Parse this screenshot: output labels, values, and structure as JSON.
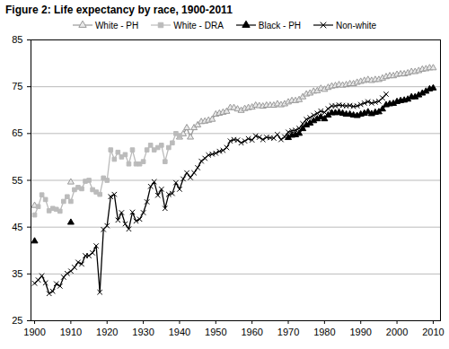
{
  "chart_data": {
    "type": "line",
    "title": "Figure 2: Life expectancy by race, 1900-2011",
    "x": [
      1900,
      1901,
      1902,
      1903,
      1904,
      1905,
      1906,
      1907,
      1908,
      1909,
      1910,
      1911,
      1912,
      1913,
      1914,
      1915,
      1916,
      1917,
      1918,
      1919,
      1920,
      1921,
      1922,
      1923,
      1924,
      1925,
      1926,
      1927,
      1928,
      1929,
      1930,
      1931,
      1932,
      1933,
      1934,
      1935,
      1936,
      1937,
      1938,
      1939,
      1940,
      1941,
      1942,
      1943,
      1944,
      1945,
      1946,
      1947,
      1948,
      1949,
      1950,
      1951,
      1952,
      1953,
      1954,
      1955,
      1956,
      1957,
      1958,
      1959,
      1960,
      1961,
      1962,
      1963,
      1964,
      1965,
      1966,
      1967,
      1968,
      1969,
      1970,
      1971,
      1972,
      1973,
      1974,
      1975,
      1976,
      1977,
      1978,
      1979,
      1980,
      1981,
      1982,
      1983,
      1984,
      1985,
      1986,
      1987,
      1988,
      1989,
      1990,
      1991,
      1992,
      1993,
      1994,
      1995,
      1996,
      1997,
      1998,
      1999,
      2000,
      2001,
      2002,
      2003,
      2004,
      2005,
      2006,
      2007,
      2008,
      2009,
      2010,
      2011
    ],
    "series": [
      {
        "name": "White - PH",
        "color": "#999999",
        "marker": "triangle-open",
        "line_style": "solid",
        "values": [
          49.6,
          null,
          null,
          null,
          null,
          null,
          null,
          null,
          null,
          null,
          54.6,
          null,
          null,
          null,
          null,
          null,
          null,
          null,
          null,
          null,
          null,
          null,
          null,
          null,
          null,
          null,
          null,
          null,
          null,
          null,
          null,
          null,
          null,
          null,
          null,
          null,
          null,
          null,
          null,
          null,
          64.2,
          64.9,
          66.2,
          64.2,
          66.2,
          66.8,
          67.5,
          67.6,
          67.8,
          68.0,
          69.1,
          69.3,
          69.5,
          69.7,
          70.5,
          70.5,
          70.2,
          69.9,
          70.3,
          70.5,
          70.6,
          71.0,
          70.9,
          70.8,
          71.0,
          71.0,
          71.0,
          71.3,
          71.1,
          71.3,
          71.7,
          72.0,
          72.0,
          72.2,
          72.8,
          73.4,
          73.6,
          74.0,
          74.1,
          74.6,
          74.4,
          74.8,
          75.1,
          75.2,
          75.4,
          75.3,
          75.4,
          75.6,
          75.6,
          75.9,
          76.1,
          76.3,
          76.5,
          76.3,
          76.5,
          76.5,
          76.8,
          77.1,
          77.3,
          77.3,
          77.6,
          77.7,
          77.7,
          77.9,
          78.2,
          78.2,
          78.4,
          78.7,
          78.8,
          79.0,
          79.0,
          null
        ]
      },
      {
        "name": "White - DRA",
        "color": "#bbbbbb",
        "marker": "square",
        "line_style": "solid",
        "values": [
          47.6,
          49.4,
          51.9,
          50.9,
          48.5,
          49.0,
          48.8,
          48.4,
          50.5,
          51.5,
          50.5,
          53.0,
          53.5,
          53.2,
          54.8,
          55.0,
          53.0,
          52.5,
          52.0,
          55.5,
          55.0,
          61.5,
          59.5,
          61.0,
          60.0,
          60.5,
          58.5,
          61.5,
          58.5,
          58.5,
          59.0,
          61.5,
          62.5,
          61.5,
          62.0,
          62.5,
          59.0,
          62.0,
          63.0,
          65.0,
          64.5,
          null,
          null,
          null,
          null,
          null,
          null,
          null,
          null,
          null,
          null,
          null,
          null,
          null,
          null,
          null,
          null,
          null,
          null,
          null,
          null,
          null,
          null,
          null,
          null,
          null,
          null,
          null,
          null,
          null,
          null,
          null,
          null,
          null,
          null,
          null,
          null,
          null,
          null,
          null,
          null,
          null,
          null,
          null,
          null,
          null,
          null,
          null,
          null,
          null,
          null,
          null,
          null,
          null,
          null,
          null,
          null,
          null,
          null,
          null,
          null,
          null,
          null,
          null,
          null,
          null,
          null,
          null,
          null,
          null,
          null,
          null
        ]
      },
      {
        "name": "Black - PH",
        "color": "#000000",
        "marker": "triangle",
        "line_style": "solid",
        "values": [
          42.0,
          null,
          null,
          null,
          null,
          null,
          null,
          null,
          null,
          null,
          46.0,
          null,
          null,
          null,
          null,
          null,
          null,
          null,
          null,
          null,
          null,
          null,
          null,
          null,
          null,
          null,
          null,
          null,
          null,
          null,
          null,
          null,
          null,
          null,
          null,
          null,
          null,
          null,
          null,
          null,
          null,
          null,
          null,
          null,
          null,
          null,
          null,
          null,
          null,
          null,
          null,
          null,
          null,
          null,
          null,
          null,
          null,
          null,
          null,
          null,
          null,
          null,
          null,
          null,
          null,
          null,
          null,
          null,
          null,
          null,
          64.1,
          64.6,
          64.7,
          65.0,
          66.0,
          66.8,
          67.2,
          67.7,
          68.1,
          68.5,
          68.1,
          68.9,
          69.4,
          69.4,
          69.5,
          69.3,
          69.1,
          69.1,
          68.9,
          68.8,
          69.1,
          69.3,
          69.6,
          69.2,
          69.5,
          69.6,
          70.2,
          71.1,
          71.3,
          71.4,
          71.8,
          72.0,
          72.1,
          72.3,
          72.8,
          72.8,
          73.2,
          73.6,
          74.0,
          74.5,
          74.7,
          null
        ]
      },
      {
        "name": "Non-white",
        "color": "#000000",
        "marker": "times",
        "line_style": "solid",
        "values": [
          33.0,
          33.7,
          34.6,
          33.1,
          30.8,
          31.3,
          32.9,
          32.4,
          34.3,
          35.1,
          35.6,
          36.4,
          37.5,
          37.1,
          38.9,
          38.9,
          39.5,
          41.0,
          31.1,
          44.5,
          45.3,
          51.5,
          52.0,
          46.5,
          48.1,
          45.7,
          44.6,
          48.2,
          46.3,
          46.7,
          48.1,
          50.4,
          53.7,
          54.7,
          51.8,
          53.1,
          49.0,
          52.0,
          52.2,
          54.5,
          53.1,
          55.3,
          56.6,
          55.6,
          56.6,
          57.7,
          59.1,
          59.7,
          60.4,
          60.6,
          60.8,
          61.2,
          61.4,
          62.0,
          63.4,
          63.7,
          63.6,
          63.0,
          63.4,
          63.9,
          63.6,
          64.5,
          64.2,
          63.7,
          64.2,
          64.1,
          64.0,
          64.8,
          63.7,
          64.3,
          65.3,
          65.6,
          65.7,
          66.1,
          67.1,
          68.0,
          68.4,
          68.9,
          69.3,
          69.8,
          69.5,
          70.3,
          70.9,
          70.9,
          71.1,
          71.0,
          70.9,
          71.0,
          70.8,
          70.9,
          71.2,
          71.5,
          71.8,
          71.5,
          71.7,
          71.9,
          72.6,
          73.4,
          null,
          null,
          null,
          null,
          null,
          null,
          null,
          null,
          null,
          null,
          null,
          null,
          null,
          null
        ]
      }
    ],
    "xlim": [
      1899,
      2012
    ],
    "xticks": [
      1900,
      1910,
      1920,
      1930,
      1940,
      1950,
      1960,
      1970,
      1980,
      1990,
      2000,
      2010
    ],
    "ylim": [
      25,
      85
    ],
    "yticks": [
      25,
      35,
      45,
      55,
      65,
      75,
      85
    ],
    "grid": true,
    "legend": "top"
  }
}
